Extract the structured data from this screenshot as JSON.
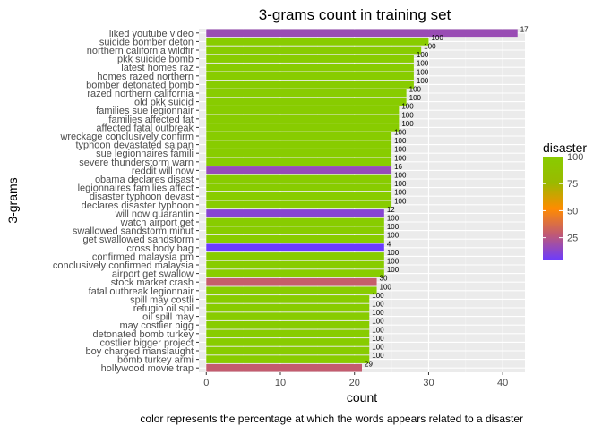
{
  "chart_data": {
    "type": "bar",
    "orientation": "horizontal",
    "title": "3-grams count in training set",
    "xlabel": "count",
    "ylabel": "3-grams",
    "caption": "color represents the percentage at which the words appears related to a disaster",
    "xlim": [
      -1,
      43
    ],
    "xticks": [
      0,
      10,
      20,
      30,
      40
    ],
    "grid": true,
    "legend": {
      "title": "disaster",
      "position": "right",
      "ticks": [
        25,
        50,
        75,
        100
      ],
      "range": [
        4,
        100
      ],
      "gradient": [
        "#6B3BFF",
        "#C05A74",
        "#FF8C00",
        "#99BA00",
        "#88CC00"
      ]
    },
    "bars": [
      {
        "label": "liked youtube video",
        "count": 42,
        "disaster": 17
      },
      {
        "label": "suicide bomber deton",
        "count": 30,
        "disaster": 100
      },
      {
        "label": "northern california wildfir",
        "count": 29,
        "disaster": 100
      },
      {
        "label": "pkk suicide bomb",
        "count": 28,
        "disaster": 100
      },
      {
        "label": "latest homes raz",
        "count": 28,
        "disaster": 100
      },
      {
        "label": "homes razed northern",
        "count": 28,
        "disaster": 100
      },
      {
        "label": "bomber detonated bomb",
        "count": 28,
        "disaster": 100
      },
      {
        "label": "razed northern california",
        "count": 27,
        "disaster": 100
      },
      {
        "label": "old pkk suicid",
        "count": 27,
        "disaster": 100
      },
      {
        "label": "families sue legionnair",
        "count": 26,
        "disaster": 100
      },
      {
        "label": "families affected fat",
        "count": 26,
        "disaster": 100
      },
      {
        "label": "affected fatal outbreak",
        "count": 26,
        "disaster": 100
      },
      {
        "label": "wreckage conclusively confirm",
        "count": 25,
        "disaster": 100
      },
      {
        "label": "typhoon devastated saipan",
        "count": 25,
        "disaster": 100
      },
      {
        "label": "sue legionnaires famili",
        "count": 25,
        "disaster": 100
      },
      {
        "label": "severe thunderstorm warn",
        "count": 25,
        "disaster": 100
      },
      {
        "label": "reddit will now",
        "count": 25,
        "disaster": 16
      },
      {
        "label": "obama declares disast",
        "count": 25,
        "disaster": 100
      },
      {
        "label": "legionnaires families affect",
        "count": 25,
        "disaster": 100
      },
      {
        "label": "disaster typhoon devast",
        "count": 25,
        "disaster": 100
      },
      {
        "label": "declares disaster typhoon",
        "count": 25,
        "disaster": 100
      },
      {
        "label": "will now quarantin",
        "count": 24,
        "disaster": 12
      },
      {
        "label": "watch airport get",
        "count": 24,
        "disaster": 100
      },
      {
        "label": "swallowed sandstorm minut",
        "count": 24,
        "disaster": 100
      },
      {
        "label": "get swallowed sandstorm",
        "count": 24,
        "disaster": 100
      },
      {
        "label": "cross body bag",
        "count": 24,
        "disaster": 4
      },
      {
        "label": "confirmed malaysia pm",
        "count": 24,
        "disaster": 100
      },
      {
        "label": "conclusively confirmed malaysia",
        "count": 24,
        "disaster": 100
      },
      {
        "label": "airport get swallow",
        "count": 24,
        "disaster": 100
      },
      {
        "label": "stock market crash",
        "count": 23,
        "disaster": 30
      },
      {
        "label": "fatal outbreak legionnair",
        "count": 23,
        "disaster": 100
      },
      {
        "label": "spill may costli",
        "count": 22,
        "disaster": 100
      },
      {
        "label": "refugio oil spil",
        "count": 22,
        "disaster": 100
      },
      {
        "label": "oil spill may",
        "count": 22,
        "disaster": 100
      },
      {
        "label": "may costlier bigg",
        "count": 22,
        "disaster": 100
      },
      {
        "label": "detonated bomb turkey",
        "count": 22,
        "disaster": 100
      },
      {
        "label": "costlier bigger project",
        "count": 22,
        "disaster": 100
      },
      {
        "label": "boy charged manslaught",
        "count": 22,
        "disaster": 100
      },
      {
        "label": "bomb turkey armi",
        "count": 22,
        "disaster": 100
      },
      {
        "label": "hollywood movie trap",
        "count": 21,
        "disaster": 29
      }
    ]
  }
}
